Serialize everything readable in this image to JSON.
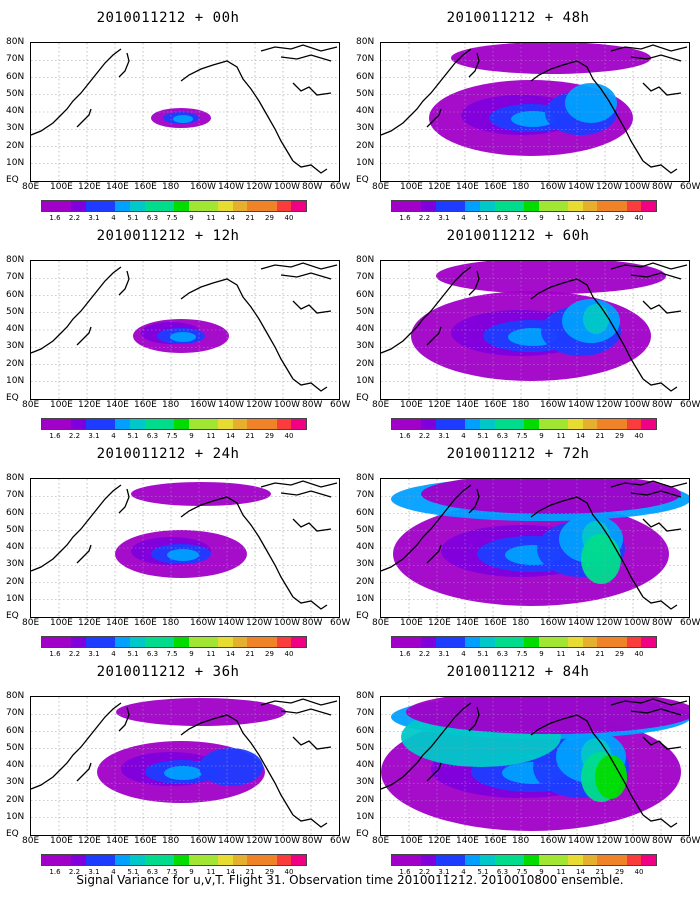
{
  "panels": [
    {
      "id": "p00",
      "title": "2010011212 + 00h",
      "level": 0
    },
    {
      "id": "p48",
      "title": "2010011212 + 48h",
      "level": 4
    },
    {
      "id": "p12",
      "title": "2010011212 + 12h",
      "level": 1
    },
    {
      "id": "p60",
      "title": "2010011212 + 60h",
      "level": 5
    },
    {
      "id": "p24",
      "title": "2010011212 + 24h",
      "level": 2
    },
    {
      "id": "p72",
      "title": "2010011212 + 72h",
      "level": 6
    },
    {
      "id": "p36",
      "title": "2010011212 + 36h",
      "level": 3
    },
    {
      "id": "p84",
      "title": "2010011212 + 84h",
      "level": 7
    }
  ],
  "lat_labels": [
    "80N",
    "70N",
    "60N",
    "50N",
    "40N",
    "30N",
    "20N",
    "10N",
    "EQ"
  ],
  "lon_labels": [
    "80E",
    "100E",
    "120E",
    "140E",
    "160E",
    "180",
    "160W",
    "140W",
    "120W",
    "100W",
    "80W",
    "60W"
  ],
  "colorbar": {
    "colors": [
      "#a000c8",
      "#7f00dc",
      "#1e3cff",
      "#00a0ff",
      "#00c8c8",
      "#00dc8c",
      "#00dc00",
      "#a0e632",
      "#e6dc32",
      "#e6af2d",
      "#f08228",
      "#fa3c3c",
      "#f00082"
    ],
    "labels": [
      "1.6",
      "2.2",
      "3.1",
      "4",
      "5.1",
      "6.3",
      "7.5",
      "9",
      "11",
      "14",
      "21",
      "29",
      "40"
    ]
  },
  "caption": "Signal Variance for u,v,T. Flight 31. Observation time 2010011212. 2010010800 ensemble."
}
